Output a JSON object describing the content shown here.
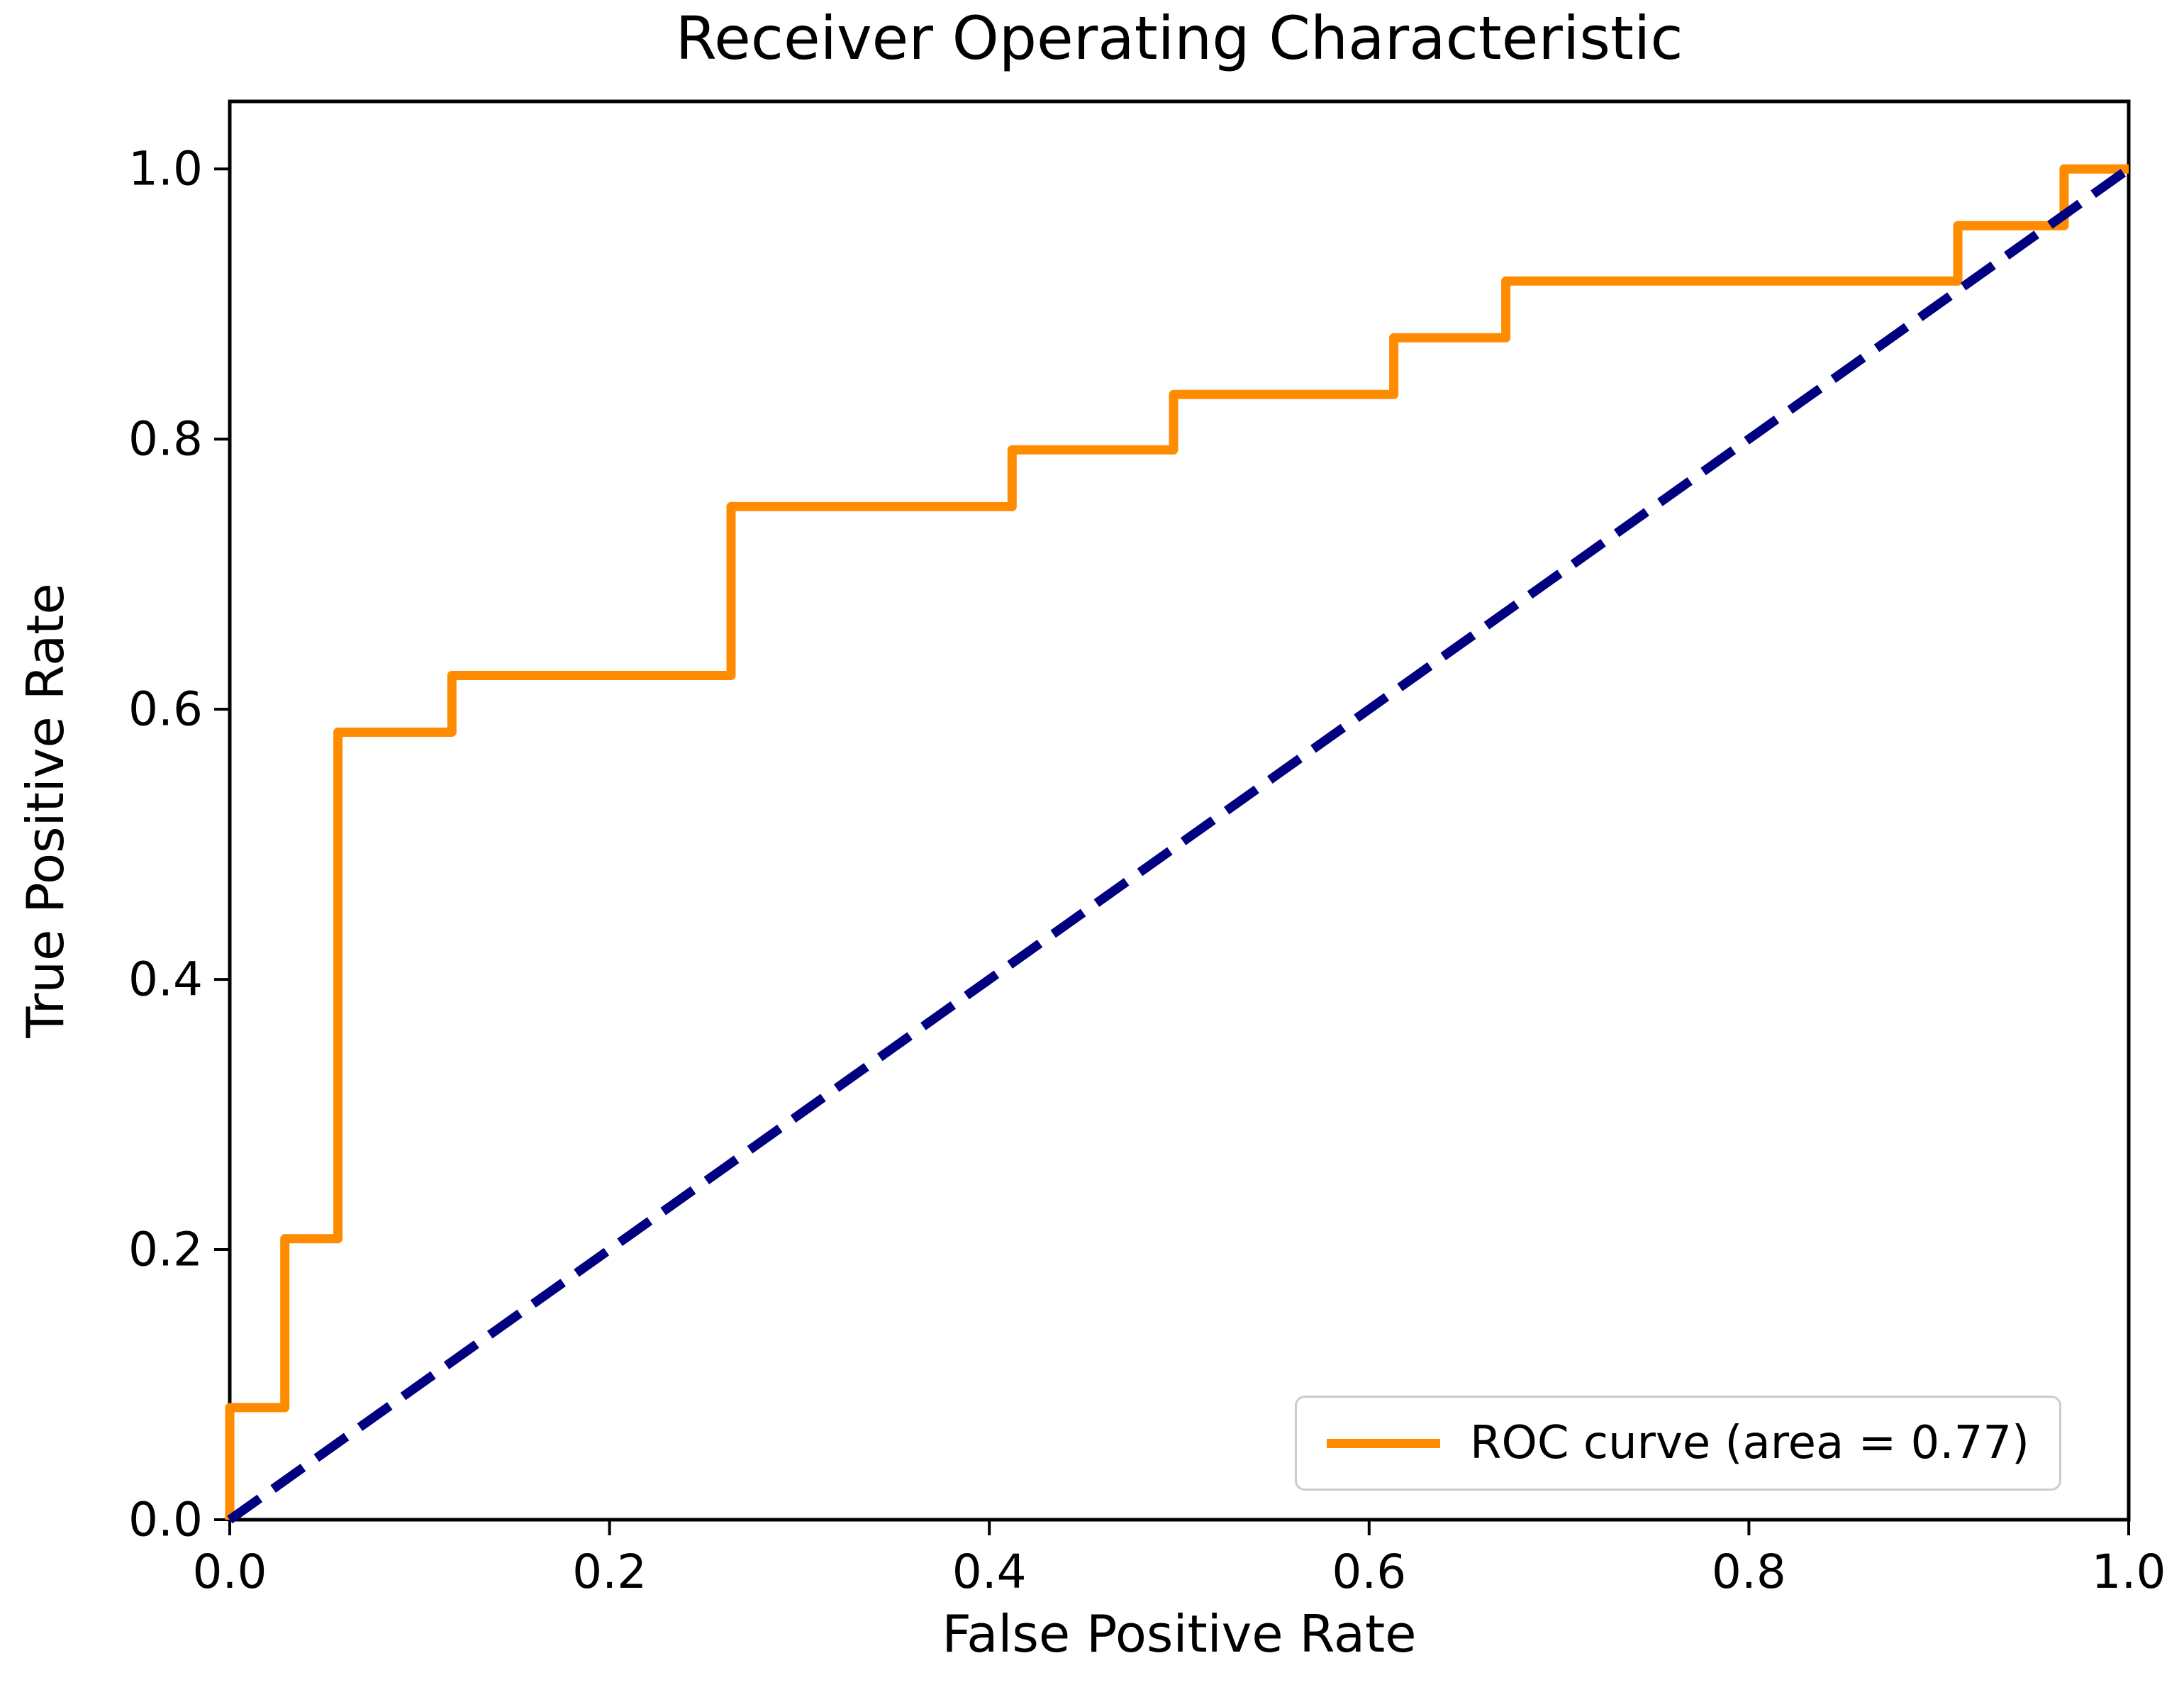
{
  "figure": {
    "title": "Receiver Operating Characteristic"
  },
  "chart_data": {
    "type": "line",
    "title": "Receiver Operating Characteristic",
    "xlabel": "False Positive Rate",
    "ylabel": "True Positive Rate",
    "xlim": [
      0.0,
      1.0
    ],
    "ylim": [
      0.0,
      1.05
    ],
    "grid": false,
    "x_ticks": [
      0.0,
      0.2,
      0.4,
      0.6,
      0.8,
      1.0
    ],
    "x_tick_labels": [
      "0.0",
      "0.2",
      "0.4",
      "0.6",
      "0.8",
      "1.0"
    ],
    "y_ticks": [
      0.0,
      0.2,
      0.4,
      0.6,
      0.8,
      1.0
    ],
    "y_tick_labels": [
      "0.0",
      "0.2",
      "0.4",
      "0.6",
      "0.8",
      "1.0"
    ],
    "auc": 0.77,
    "legend_position": "lower right",
    "series": [
      {
        "name": "ROC curve (area = 0.77)",
        "color": "#FF8C00",
        "style": "solid",
        "in_legend": true,
        "x": [
          0.0,
          0.0,
          0.029,
          0.029,
          0.057,
          0.057,
          0.117,
          0.117,
          0.264,
          0.264,
          0.412,
          0.412,
          0.497,
          0.497,
          0.613,
          0.613,
          0.672,
          0.672,
          0.91,
          0.91,
          0.966,
          0.966,
          1.0
        ],
        "y": [
          0.0,
          0.083,
          0.083,
          0.208,
          0.208,
          0.583,
          0.583,
          0.625,
          0.625,
          0.75,
          0.75,
          0.792,
          0.792,
          0.833,
          0.833,
          0.875,
          0.875,
          0.917,
          0.917,
          0.958,
          0.958,
          1.0,
          1.0
        ]
      },
      {
        "name": "chance-diagonal",
        "color": "#000080",
        "style": "dashed",
        "in_legend": false,
        "x": [
          0.0,
          1.0
        ],
        "y": [
          0.0,
          1.0
        ]
      }
    ]
  }
}
